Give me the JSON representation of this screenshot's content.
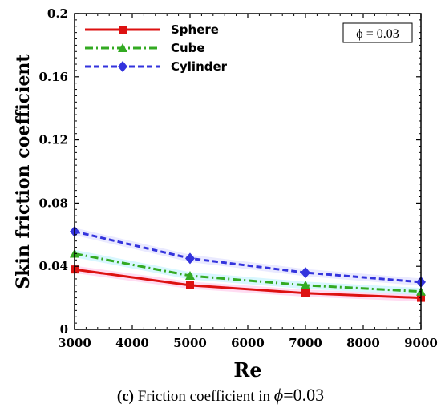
{
  "chart_data": {
    "type": "line",
    "x": [
      3000,
      5000,
      7000,
      9000
    ],
    "xlabel": "Re",
    "ylabel": "Skin friction coefficient",
    "xlim": [
      3000,
      9000
    ],
    "ylim": [
      0,
      0.2
    ],
    "xticks": [
      "3000",
      "4000",
      "5000",
      "6000",
      "7000",
      "8000",
      "9000"
    ],
    "yticks": [
      "0",
      "0.04",
      "0.08",
      "0.12",
      "0.16",
      "0.2"
    ],
    "legend_position": "top-left",
    "grid": false,
    "annotation": "ϕ = 0.03",
    "series": [
      {
        "name": "Sphere",
        "values": [
          0.038,
          0.028,
          0.023,
          0.02
        ],
        "color": "#dd1111",
        "marker": "square",
        "dash": "solid"
      },
      {
        "name": "Cube",
        "values": [
          0.048,
          0.034,
          0.028,
          0.024
        ],
        "color": "#33aa22",
        "marker": "triangle",
        "dash": "dashdot"
      },
      {
        "name": "Cylinder",
        "values": [
          0.062,
          0.045,
          0.036,
          0.03
        ],
        "color": "#3333dd",
        "marker": "diamond",
        "dash": "dashed"
      }
    ]
  },
  "caption": {
    "label": "(c)",
    "text": " Friction coefficient in ",
    "symbol": "ϕ",
    "value": "=0.03"
  }
}
